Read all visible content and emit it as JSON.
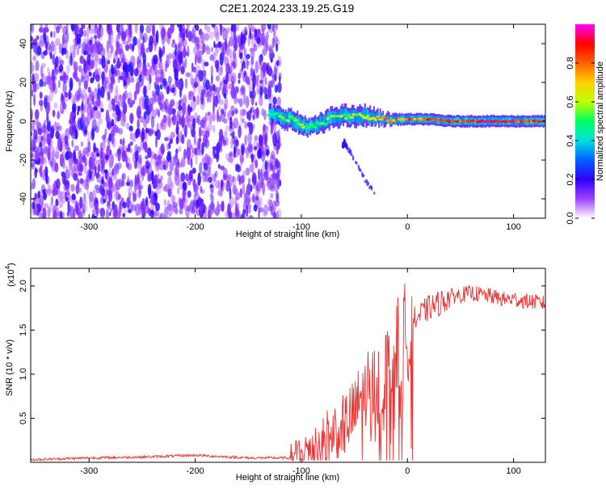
{
  "title": "C2E1.2024.233.19.25.G19",
  "chart_data": [
    {
      "type": "heatmap",
      "xlabel": "Height of straight line (km)",
      "ylabel": "Frequency (Hz)",
      "xlim": [
        -355,
        130
      ],
      "ylim": [
        -50,
        50
      ],
      "x_ticks": [
        -300,
        -200,
        -100,
        0,
        100
      ],
      "y_ticks": [
        -40,
        -20,
        0,
        20,
        40
      ],
      "colorbar": {
        "label": "Normalized spectral amplitude",
        "range": [
          0.0,
          1.0
        ],
        "ticks": [
          "0.0",
          "0.2",
          "0.4",
          "0.6",
          "0.8"
        ],
        "tick_values": [
          0.0,
          0.2,
          0.4,
          0.6,
          0.8
        ],
        "colors": [
          "#ffffff",
          "#a040ff",
          "#3000ff",
          "#0060ff",
          "#00e0e0",
          "#00ff60",
          "#c0ff00",
          "#ffd000",
          "#ff6000",
          "#ff0000",
          "#ff00ff"
        ]
      },
      "noise_region": {
        "x_range": [
          -355,
          -120
        ],
        "y_range": [
          -50,
          50
        ]
      },
      "signal_trace": {
        "x": [
          -130,
          -120,
          -110,
          -100,
          -90,
          -80,
          -70,
          -60,
          -50,
          -40,
          -30,
          -20,
          -10,
          0,
          20,
          40,
          60,
          80,
          100,
          120,
          130
        ],
        "y": [
          4,
          2,
          1,
          -2,
          -3,
          -1,
          2,
          3,
          2,
          3,
          2,
          1,
          1,
          1,
          1,
          0,
          0,
          0,
          0,
          0,
          0
        ],
        "halfwidth_hz": [
          4,
          5,
          5,
          5,
          4,
          5,
          5,
          5,
          5,
          5,
          4,
          3,
          3,
          3,
          3,
          3,
          3,
          3,
          3,
          3,
          3
        ],
        "core_amplitude": [
          0.5,
          0.55,
          0.6,
          0.6,
          0.55,
          0.6,
          0.65,
          0.6,
          0.65,
          0.6,
          0.7,
          0.8,
          0.85,
          0.85,
          0.85,
          0.9,
          0.95,
          0.95,
          0.95,
          0.9,
          0.9
        ]
      },
      "tail_trace": {
        "x": [
          -60,
          -50,
          -40,
          -30
        ],
        "y": [
          -10,
          -20,
          -30,
          -38
        ]
      }
    },
    {
      "type": "line",
      "xlabel": "Height of straight line (km)",
      "ylabel": "SNR (10 * v/v)",
      "y_multiplier": "(x10",
      "y_multiplier_exp": "4",
      "y_multiplier_close": ")",
      "xlim": [
        -355,
        130
      ],
      "ylim": [
        0,
        2.2
      ],
      "x_ticks": [
        -300,
        -200,
        -100,
        0,
        100
      ],
      "y_ticks": [
        0.5,
        1.0,
        1.5,
        2.0
      ],
      "y_tick_labels": [
        "0.5",
        "1.0",
        "1.5",
        "2.0"
      ],
      "color": "#ee3333",
      "series": [
        {
          "x": [
            -355,
            -300,
            -250,
            -200,
            -150,
            -110,
            -100,
            -90,
            -80,
            -70,
            -60,
            -50,
            -45,
            -40,
            -35,
            -30,
            -25,
            -20,
            -15,
            -10,
            -5,
            0,
            5,
            10,
            20,
            30,
            40,
            50,
            60,
            70,
            80,
            90,
            100,
            110,
            120,
            130
          ],
          "y": [
            0.03,
            0.05,
            0.06,
            0.08,
            0.05,
            0.05,
            0.12,
            0.2,
            0.28,
            0.35,
            0.42,
            0.55,
            0.7,
            0.85,
            0.9,
            0.9,
            0.95,
            1.05,
            1.15,
            1.3,
            1.4,
            1.5,
            1.6,
            1.65,
            1.75,
            1.8,
            1.88,
            1.9,
            1.92,
            1.9,
            1.88,
            1.85,
            1.85,
            1.83,
            1.82,
            1.8
          ]
        }
      ]
    }
  ]
}
